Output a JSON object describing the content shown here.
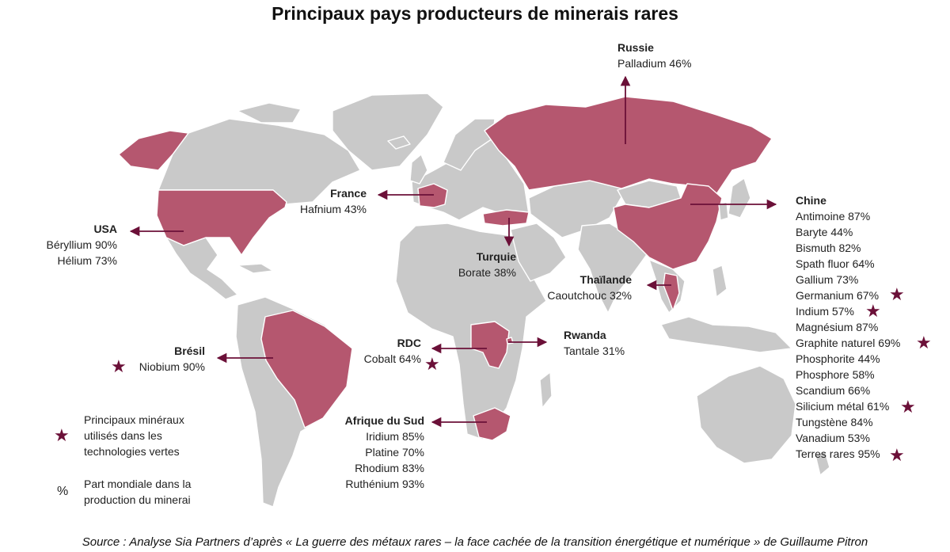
{
  "title": "Principaux pays producteurs de minerais rares",
  "source": "Source : Analyse Sia Partners d’après « La guerre des métaux rares – la face cachée de la transition énergétique et numérique » de Guillaume Pitron",
  "colors": {
    "highlight": "#b5576f",
    "land": "#c9c9c9",
    "border": "#ffffff",
    "arrow": "#6b1038",
    "star": "#6b1038"
  },
  "countries": {
    "russie": {
      "name": "Russie",
      "lines": [
        "Palladium 46%"
      ]
    },
    "france": {
      "name": "France",
      "lines": [
        "Hafnium 43%"
      ]
    },
    "usa": {
      "name": "USA",
      "lines": [
        "Béryllium 90%",
        "Hélium 73%"
      ]
    },
    "turquie": {
      "name": "Turquie",
      "lines": [
        "Borate 38%"
      ]
    },
    "thailande": {
      "name": "Thaïlande",
      "lines": [
        "Caoutchouc 32%"
      ]
    },
    "rwanda": {
      "name": "Rwanda",
      "lines": [
        "Tantale 31%"
      ]
    },
    "rdc": {
      "name": "RDC",
      "lines": [
        "Cobalt 64%"
      ]
    },
    "bresil": {
      "name": "Brésil",
      "lines": [
        "Niobium 90%"
      ]
    },
    "afrique_du_sud": {
      "name": "Afrique du Sud",
      "lines": [
        "Iridium 85%",
        "Platine 70%",
        "Rhodium 83%",
        "Ruthénium 93%"
      ]
    },
    "chine": {
      "name": "Chine",
      "lines": [
        "Antimoine 87%",
        "Baryte 44%",
        "Bismuth 82%",
        "Spath fluor 64%",
        "Gallium 73%",
        "Germanium 67%",
        "Indium 57%",
        "Magnésium 87%",
        "Graphite naturel 69%",
        "Phosphorite 44%",
        "Phosphore 58%",
        "Scandium 66%",
        "Silicium métal 61%",
        "Tungstène 84%",
        "Vanadium 53%",
        "Terres rares 95%"
      ]
    }
  },
  "green_tech_minerals": [
    "Cobalt 64%",
    "Niobium 90%",
    "Germanium 67%",
    "Indium 57%",
    "Graphite naturel 69%",
    "Silicium métal 61%",
    "Terres rares 95%"
  ],
  "legend": {
    "star_icon": "star-icon",
    "star_text_1": "Principaux minéraux",
    "star_text_2": "utilisés dans les",
    "star_text_3": "technologies vertes",
    "pct_symbol": "%",
    "pct_text_1": "Part mondiale dans la",
    "pct_text_2": "production du minerai"
  }
}
